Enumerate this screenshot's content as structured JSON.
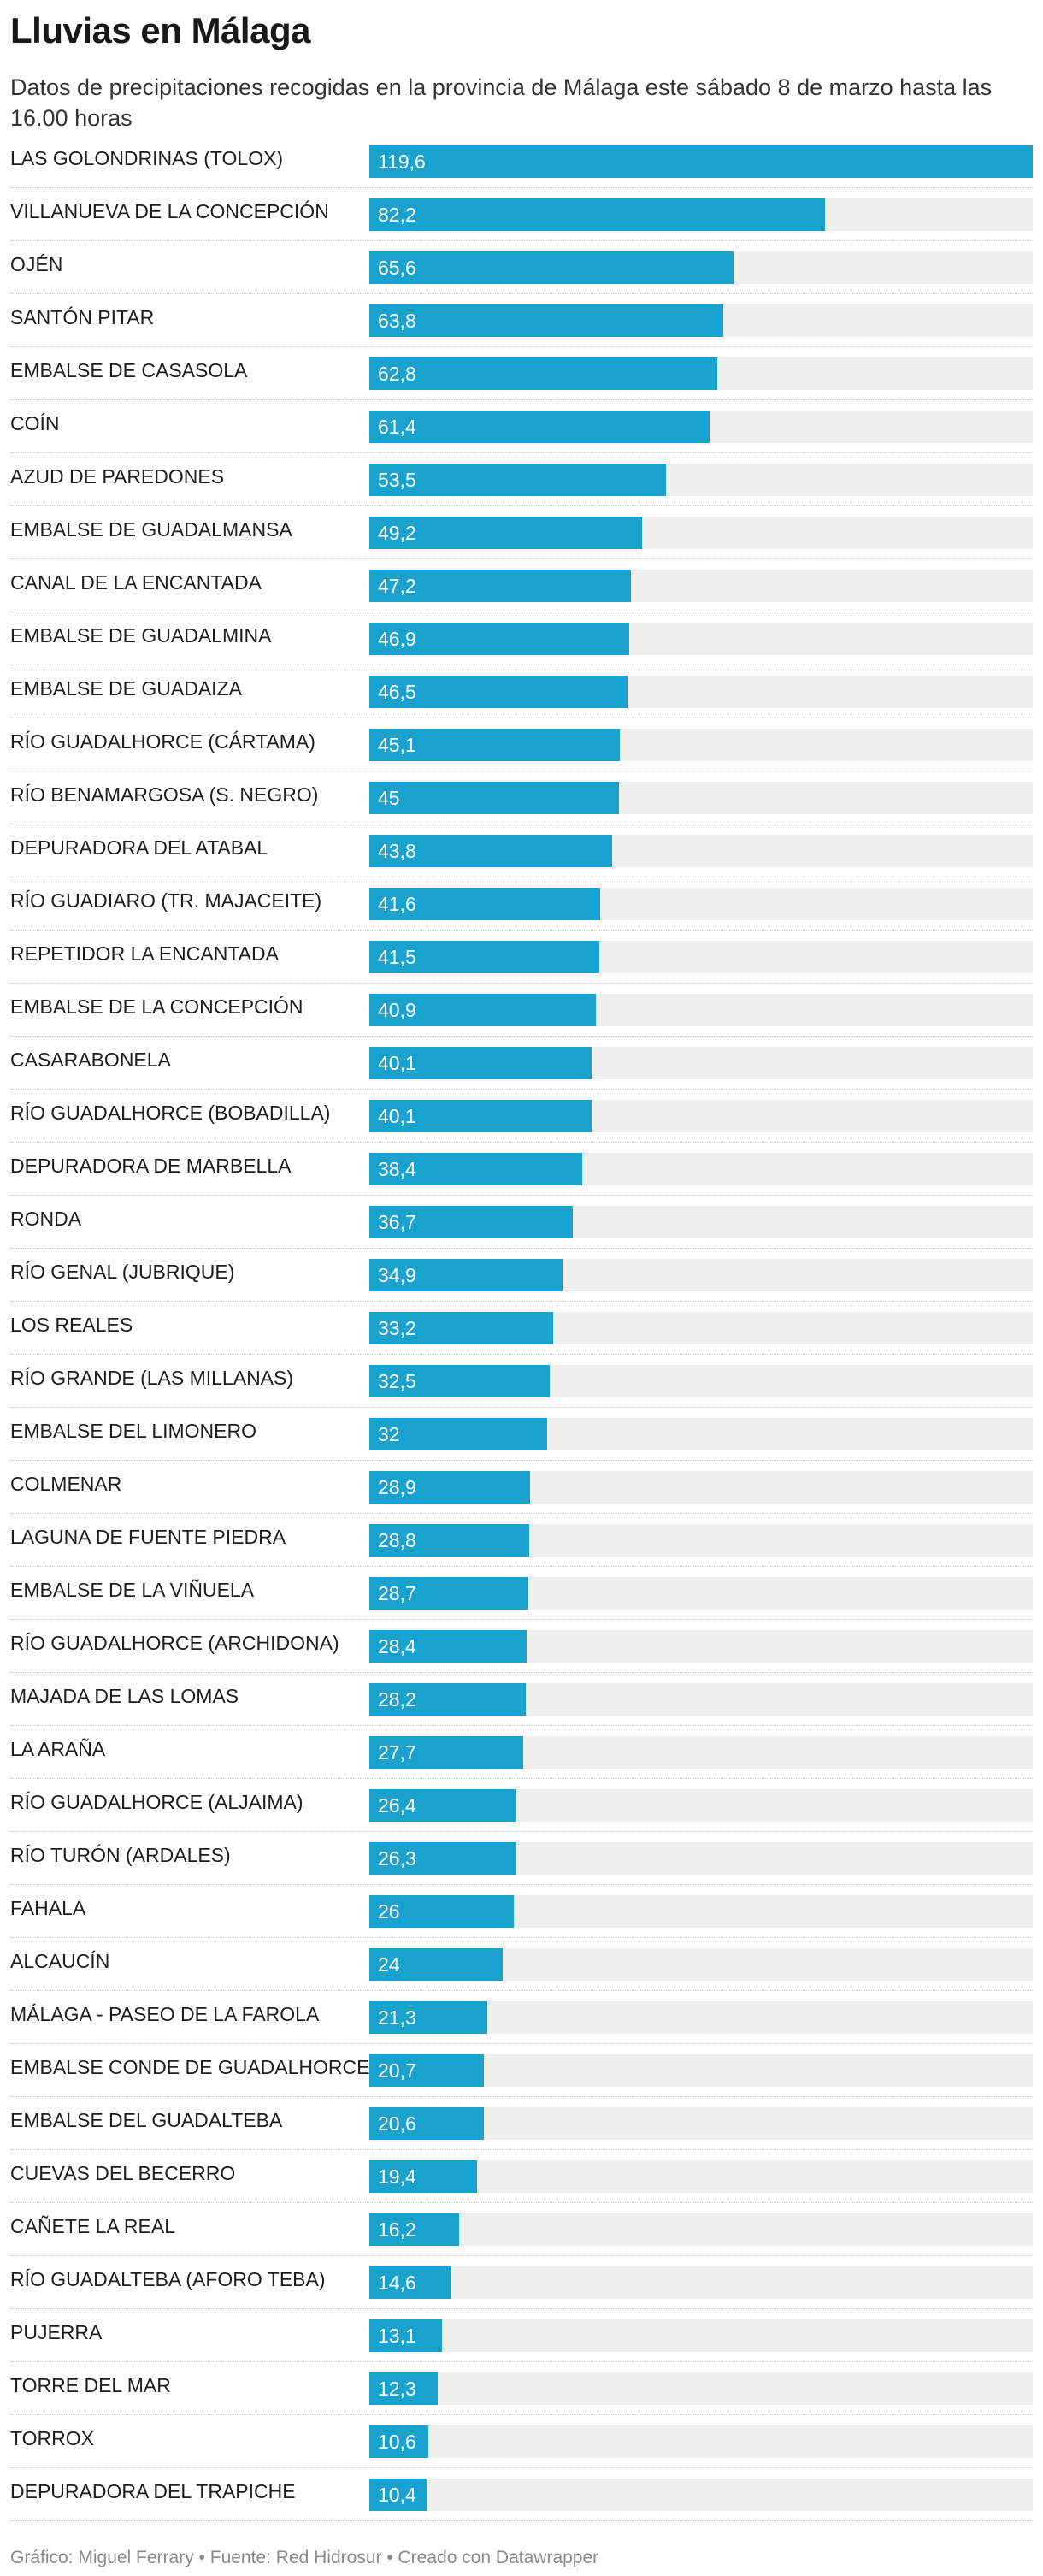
{
  "header": {
    "title": "Lluvias en Málaga",
    "subtitle": "Datos de precipitaciones recogidas en la provincia de Málaga este sábado 8 de marzo hasta las 16.00 horas"
  },
  "colors": {
    "bar": "#1aa2cf",
    "track": "#efefef",
    "value_text": "#ffffff"
  },
  "chart_data": {
    "type": "bar",
    "orientation": "horizontal",
    "title": "Lluvias en Málaga",
    "xlabel": "",
    "ylabel": "",
    "xlim": [
      0,
      119.6
    ],
    "categories": [
      "LAS GOLONDRINAS (TOLOX)",
      "VILLANUEVA DE LA CONCEPCIÓN",
      "OJÉN",
      "SANTÓN PITAR",
      "EMBALSE DE CASASOLA",
      "COÍN",
      "AZUD DE PAREDONES",
      "EMBALSE DE GUADALMANSA",
      "CANAL DE LA ENCANTADA",
      "EMBALSE DE GUADALMINA",
      "EMBALSE DE GUADAIZA",
      "RÍO GUADALHORCE (CÁRTAMA)",
      "RÍO BENAMARGOSA (S. NEGRO)",
      "DEPURADORA DEL ATABAL",
      "RÍO GUADIARO (TR. MAJACEITE)",
      "REPETIDOR LA ENCANTADA",
      "EMBALSE DE LA CONCEPCIÓN",
      "CASARABONELA",
      "RÍO GUADALHORCE (BOBADILLA)",
      "DEPURADORA DE MARBELLA",
      "RONDA",
      "RÍO GENAL (JUBRIQUE)",
      "LOS REALES",
      "RÍO GRANDE (LAS MILLANAS)",
      "EMBALSE DEL LIMONERO",
      "COLMENAR",
      "LAGUNA DE FUENTE PIEDRA",
      "EMBALSE DE LA VIÑUELA",
      "RÍO GUADALHORCE (ARCHIDONA)",
      "MAJADA DE LAS LOMAS",
      "LA ARAÑA",
      "RÍO GUADALHORCE (ALJAIMA)",
      "RÍO TURÓN (ARDALES)",
      "FAHALA",
      "ALCAUCÍN",
      "MÁLAGA - PASEO DE LA FAROLA",
      "EMBALSE CONDE DE GUADALHORCE",
      "EMBALSE DEL GUADALTEBA",
      "CUEVAS DEL BECERRO",
      "CAÑETE LA REAL",
      "RÍO GUADALTEBA (AFORO TEBA)",
      "PUJERRA",
      "TORRE DEL MAR",
      "TORROX",
      "DEPURADORA DEL TRAPICHE"
    ],
    "values": [
      119.6,
      82.2,
      65.6,
      63.8,
      62.8,
      61.4,
      53.5,
      49.2,
      47.2,
      46.9,
      46.5,
      45.1,
      45,
      43.8,
      41.6,
      41.5,
      40.9,
      40.1,
      40.1,
      38.4,
      36.7,
      34.9,
      33.2,
      32.5,
      32,
      28.9,
      28.8,
      28.7,
      28.4,
      28.2,
      27.7,
      26.4,
      26.3,
      26,
      24,
      21.3,
      20.7,
      20.6,
      19.4,
      16.2,
      14.6,
      13.1,
      12.3,
      10.6,
      10.4
    ],
    "value_labels": [
      "119,6",
      "82,2",
      "65,6",
      "63,8",
      "62,8",
      "61,4",
      "53,5",
      "49,2",
      "47,2",
      "46,9",
      "46,5",
      "45,1",
      "45",
      "43,8",
      "41,6",
      "41,5",
      "40,9",
      "40,1",
      "40,1",
      "38,4",
      "36,7",
      "34,9",
      "33,2",
      "32,5",
      "32",
      "28,9",
      "28,8",
      "28,7",
      "28,4",
      "28,2",
      "27,7",
      "26,4",
      "26,3",
      "26",
      "24",
      "21,3",
      "20,7",
      "20,6",
      "19,4",
      "16,2",
      "14,6",
      "13,1",
      "12,3",
      "10,6",
      "10,4"
    ]
  },
  "footer": {
    "text": "Gráfico: Miguel Ferrary • Fuente: Red Hidrosur • Creado con Datawrapper"
  }
}
